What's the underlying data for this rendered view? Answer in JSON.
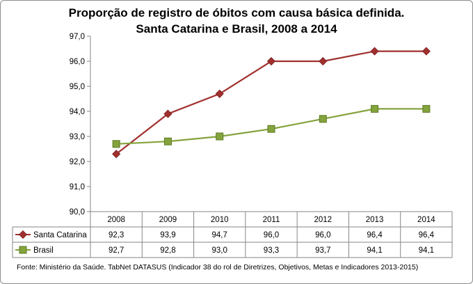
{
  "chart_data": {
    "type": "line",
    "title_line1": "Proporção de registro de óbitos com causa básica definida.",
    "title_line2": "Santa Catarina e Brasil, 2008 a 2014",
    "categories": [
      "2008",
      "2009",
      "2010",
      "2011",
      "2012",
      "2013",
      "2014"
    ],
    "y_ticks": [
      "97,0",
      "96,0",
      "95,0",
      "94,0",
      "93,0",
      "92,0",
      "91,0",
      "90,0"
    ],
    "ylim": [
      90.0,
      97.0
    ],
    "series": [
      {
        "name": "Santa Catarina",
        "values": [
          92.3,
          93.9,
          94.7,
          96.0,
          96.0,
          96.4,
          96.4
        ],
        "labels": [
          "92,3",
          "93,9",
          "94,7",
          "96,0",
          "96,0",
          "96,4",
          "96,4"
        ],
        "color": "#a0302e",
        "marker": "diamond"
      },
      {
        "name": "Brasil",
        "values": [
          92.7,
          92.8,
          93.0,
          93.3,
          93.7,
          94.1,
          94.1
        ],
        "labels": [
          "92,7",
          "92,8",
          "93,0",
          "93,3",
          "93,7",
          "94,1",
          "94,1"
        ],
        "color": "#84a33c",
        "marker": "square"
      }
    ],
    "grid": false,
    "legend": "data-table"
  },
  "source_text": "Fonte: Ministério da Saúde. TabNet DATASUS (Indicador 38 do rol de Diretrizes, Objetivos, Metas e Indicadores 2013-2015)"
}
